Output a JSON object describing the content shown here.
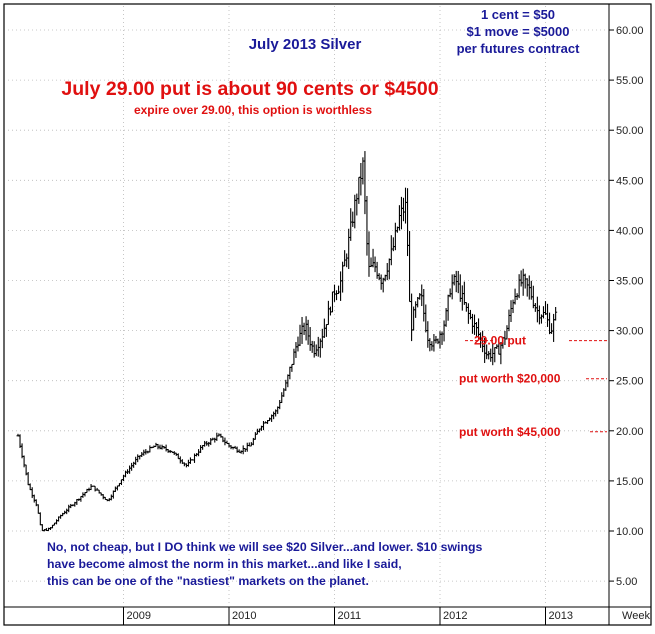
{
  "colors": {
    "bars": "#000000",
    "title_blue": "#1a1a99",
    "annotation_red": "#e01010",
    "grid": "#b8b8b8",
    "frame": "#000000",
    "background": "#ffffff"
  },
  "chart_data": {
    "type": "bar",
    "subtype": "ohlc-price-chart",
    "title": "July 2013 Silver",
    "frequency_label": "Week",
    "ylim": [
      2.5,
      64.0
    ],
    "xlim": [
      2008.0,
      2013.15
    ],
    "y_ticks": [
      "60.00",
      "55.00",
      "50.00",
      "45.00",
      "40.00",
      "35.00",
      "30.00",
      "25.00",
      "20.00",
      "15.00",
      "10.00",
      "5.00"
    ],
    "x_ticks": [
      "2009",
      "2010",
      "2011",
      "2012",
      "2013"
    ],
    "grid": true,
    "contract_notes": [
      "1 cent = $50",
      "$1 move = $5000",
      "per futures contract"
    ],
    "headline": "July 29.00 put is about 90 cents or $4500",
    "subheadline": "expire over 29.00, this option is worthless",
    "levels": [
      {
        "label": "29.00 put",
        "value": 29.0
      },
      {
        "label": "put worth $20,000",
        "value": 25.2
      },
      {
        "label": "put worth $45,000",
        "value": 19.9
      }
    ],
    "comment": "No, not cheap, but I DO think we will see $20 Silver...and lower. $10 swings have become almost the norm in this market...and like I said, this can be one of the \"nastiest\" markets on the planet.",
    "series": [
      {
        "x": [
          2008.0,
          2008.1,
          2008.18,
          2008.22,
          2008.3,
          2008.4,
          2008.55,
          2008.7,
          2008.85,
          2009.0,
          2009.15,
          2009.3,
          2009.45,
          2009.6,
          2009.75,
          2009.9,
          2010.0,
          2010.1,
          2010.2,
          2010.3,
          2010.45,
          2010.55,
          2010.65,
          2010.72,
          2010.8,
          2010.88,
          2010.95,
          2011.0,
          2011.05,
          2011.12,
          2011.2,
          2011.27,
          2011.32,
          2011.38,
          2011.45,
          2011.55,
          2011.62,
          2011.68,
          2011.72,
          2011.76,
          2011.82,
          2011.88,
          2011.95,
          2012.05,
          2012.1,
          2012.15,
          2012.25,
          2012.35,
          2012.45,
          2012.55,
          2012.62,
          2012.7,
          2012.78,
          2012.85,
          2012.92,
          2013.0,
          2013.05,
          2013.1
        ],
        "close": [
          19.5,
          14.5,
          12.5,
          10.0,
          10.2,
          11.5,
          13.0,
          14.5,
          13.0,
          15.5,
          17.5,
          18.5,
          18.0,
          16.5,
          18.5,
          19.5,
          18.5,
          18.0,
          18.5,
          20.5,
          22.0,
          25.0,
          29.0,
          30.5,
          28.0,
          29.5,
          32.0,
          34.0,
          34.5,
          38.0,
          43.0,
          46.5,
          36.0,
          36.5,
          35.0,
          38.0,
          41.5,
          42.5,
          30.0,
          32.0,
          33.5,
          29.5,
          28.5,
          31.0,
          34.5,
          35.0,
          32.0,
          30.0,
          27.5,
          28.0,
          29.5,
          33.5,
          35.0,
          34.0,
          32.0,
          31.5,
          30.0,
          31.5
        ]
      }
    ]
  }
}
